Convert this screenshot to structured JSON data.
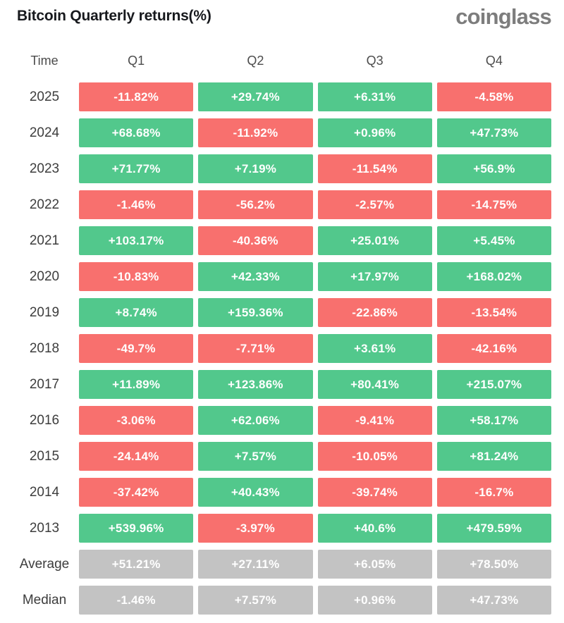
{
  "header": {
    "title": "Bitcoin Quarterly returns(%)",
    "logo": "coinglass"
  },
  "colors": {
    "positive": "#52C88C",
    "negative": "#F8706E",
    "neutral": "#C3C3C3",
    "cell_text": "#ffffff"
  },
  "table": {
    "columns": [
      "Time",
      "Q1",
      "Q2",
      "Q3",
      "Q4"
    ],
    "rows": [
      {
        "label": "2025",
        "summary": false,
        "values": [
          "-11.82%",
          "+29.74%",
          "+6.31%",
          "-4.58%"
        ]
      },
      {
        "label": "2024",
        "summary": false,
        "values": [
          "+68.68%",
          "-11.92%",
          "+0.96%",
          "+47.73%"
        ]
      },
      {
        "label": "2023",
        "summary": false,
        "values": [
          "+71.77%",
          "+7.19%",
          "-11.54%",
          "+56.9%"
        ]
      },
      {
        "label": "2022",
        "summary": false,
        "values": [
          "-1.46%",
          "-56.2%",
          "-2.57%",
          "-14.75%"
        ]
      },
      {
        "label": "2021",
        "summary": false,
        "values": [
          "+103.17%",
          "-40.36%",
          "+25.01%",
          "+5.45%"
        ]
      },
      {
        "label": "2020",
        "summary": false,
        "values": [
          "-10.83%",
          "+42.33%",
          "+17.97%",
          "+168.02%"
        ]
      },
      {
        "label": "2019",
        "summary": false,
        "values": [
          "+8.74%",
          "+159.36%",
          "-22.86%",
          "-13.54%"
        ]
      },
      {
        "label": "2018",
        "summary": false,
        "values": [
          "-49.7%",
          "-7.71%",
          "+3.61%",
          "-42.16%"
        ]
      },
      {
        "label": "2017",
        "summary": false,
        "values": [
          "+11.89%",
          "+123.86%",
          "+80.41%",
          "+215.07%"
        ]
      },
      {
        "label": "2016",
        "summary": false,
        "values": [
          "-3.06%",
          "+62.06%",
          "-9.41%",
          "+58.17%"
        ]
      },
      {
        "label": "2015",
        "summary": false,
        "values": [
          "-24.14%",
          "+7.57%",
          "-10.05%",
          "+81.24%"
        ]
      },
      {
        "label": "2014",
        "summary": false,
        "values": [
          "-37.42%",
          "+40.43%",
          "-39.74%",
          "-16.7%"
        ]
      },
      {
        "label": "2013",
        "summary": false,
        "values": [
          "+539.96%",
          "-3.97%",
          "+40.6%",
          "+479.59%"
        ]
      },
      {
        "label": "Average",
        "summary": true,
        "values": [
          "+51.21%",
          "+27.11%",
          "+6.05%",
          "+78.50%"
        ]
      },
      {
        "label": "Median",
        "summary": true,
        "values": [
          "-1.46%",
          "+7.57%",
          "+0.96%",
          "+47.73%"
        ]
      }
    ]
  },
  "chart_data": {
    "type": "heatmap",
    "title": "Bitcoin Quarterly returns(%)",
    "columns": [
      "Q1",
      "Q2",
      "Q3",
      "Q4"
    ],
    "row_labels": [
      "2025",
      "2024",
      "2023",
      "2022",
      "2021",
      "2020",
      "2019",
      "2018",
      "2017",
      "2016",
      "2015",
      "2014",
      "2013",
      "Average",
      "Median"
    ],
    "values": [
      [
        -11.82,
        29.74,
        6.31,
        -4.58
      ],
      [
        68.68,
        -11.92,
        0.96,
        47.73
      ],
      [
        71.77,
        7.19,
        -11.54,
        56.9
      ],
      [
        -1.46,
        -56.2,
        -2.57,
        -14.75
      ],
      [
        103.17,
        -40.36,
        25.01,
        5.45
      ],
      [
        -10.83,
        42.33,
        17.97,
        168.02
      ],
      [
        8.74,
        159.36,
        -22.86,
        -13.54
      ],
      [
        -49.7,
        -7.71,
        3.61,
        -42.16
      ],
      [
        11.89,
        123.86,
        80.41,
        215.07
      ],
      [
        -3.06,
        62.06,
        -9.41,
        58.17
      ],
      [
        -24.14,
        7.57,
        -10.05,
        81.24
      ],
      [
        -37.42,
        40.43,
        -39.74,
        -16.7
      ],
      [
        539.96,
        -3.97,
        40.6,
        479.59
      ],
      [
        51.21,
        27.11,
        6.05,
        78.5
      ],
      [
        -1.46,
        7.57,
        0.96,
        47.73
      ]
    ],
    "unit": "%",
    "color_rule": "positive values green, negative values red, Average/Median rows gray",
    "legend": "none",
    "grid": "off"
  }
}
